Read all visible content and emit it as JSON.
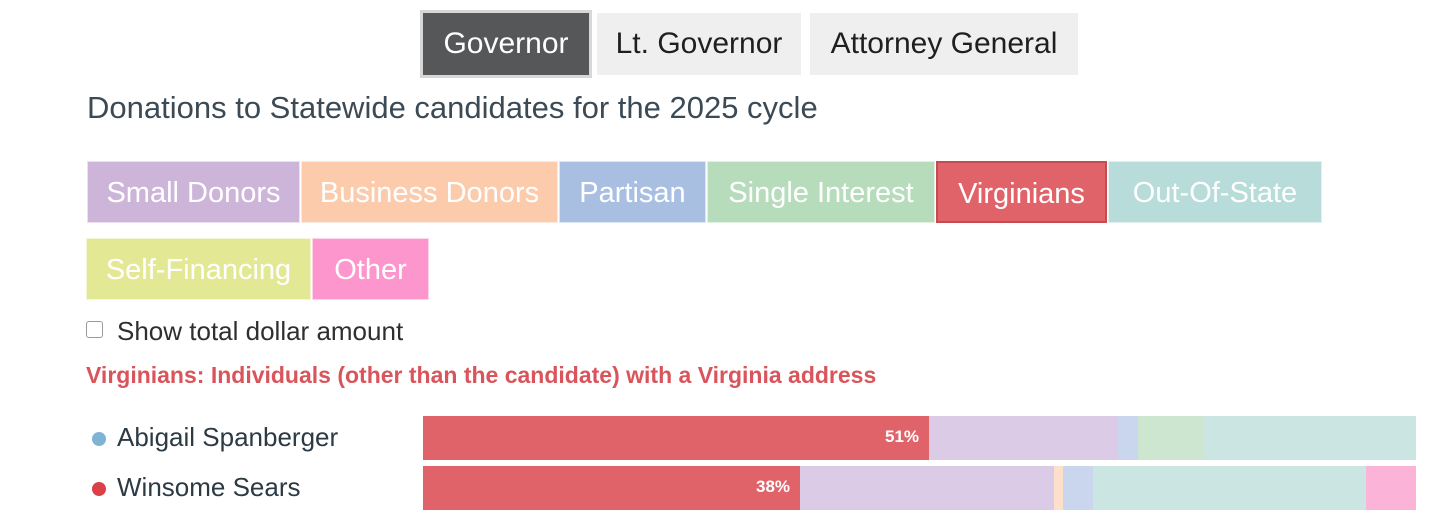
{
  "office_tabs": [
    {
      "label": "Governor",
      "active": true
    },
    {
      "label": "Lt. Governor",
      "active": false
    },
    {
      "label": "Attorney General",
      "active": false
    }
  ],
  "heading": "Donations to Statewide candidates for the 2025 cycle",
  "categories": [
    {
      "label": "Small Donors",
      "color": "#cdb5d9"
    },
    {
      "label": "Business Donors",
      "color": "#fbcbac"
    },
    {
      "label": "Partisan",
      "color": "#a8bfe2"
    },
    {
      "label": "Single Interest",
      "color": "#b7dcbc"
    },
    {
      "label": "Virginians",
      "color": "#e1636a",
      "active": true
    },
    {
      "label": "Out-Of-State",
      "color": "#b7dcd9"
    },
    {
      "label": "Self-Financing",
      "color": "#e3e894"
    },
    {
      "label": "Other",
      "color": "#fd96cc"
    }
  ],
  "show_total_label": "Show total dollar amount",
  "show_total_checked": false,
  "description": "Virginians: Individuals (other than the candidate) with a Virginia address",
  "chart_data": {
    "type": "bar",
    "orientation": "horizontal-stacked-100",
    "categories": [
      "Abigail Spanberger",
      "Winsome Sears"
    ],
    "highlight_series": "Virginians",
    "series": [
      {
        "name": "Virginians",
        "values": [
          51,
          38
        ],
        "labels": [
          "51%",
          "38%"
        ]
      },
      {
        "name": "Small Donors",
        "values": [
          19,
          25.5
        ]
      },
      {
        "name": "Business Donors",
        "values": [
          0,
          1
        ]
      },
      {
        "name": "Partisan",
        "values": [
          2,
          3
        ]
      },
      {
        "name": "Single Interest",
        "values": [
          6.5,
          0
        ]
      },
      {
        "name": "Out-Of-State",
        "values": [
          21.5,
          27.5
        ]
      },
      {
        "name": "Self-Financing",
        "values": [
          0,
          0
        ]
      },
      {
        "name": "Other",
        "values": [
          0,
          5
        ]
      }
    ],
    "candidate_colors": [
      "#7fb3d4",
      "#d9404a"
    ],
    "faded_colors": {
      "Small Donors": "#dccbe6",
      "Business Donors": "#fde0cc",
      "Partisan": "#c9d6ee",
      "Single Interest": "#cde6cf",
      "Out-Of-State": "#cbe5e2",
      "Self-Financing": "#eef0c2",
      "Other": "#fbb3d8"
    },
    "xlim": [
      0,
      100
    ]
  }
}
